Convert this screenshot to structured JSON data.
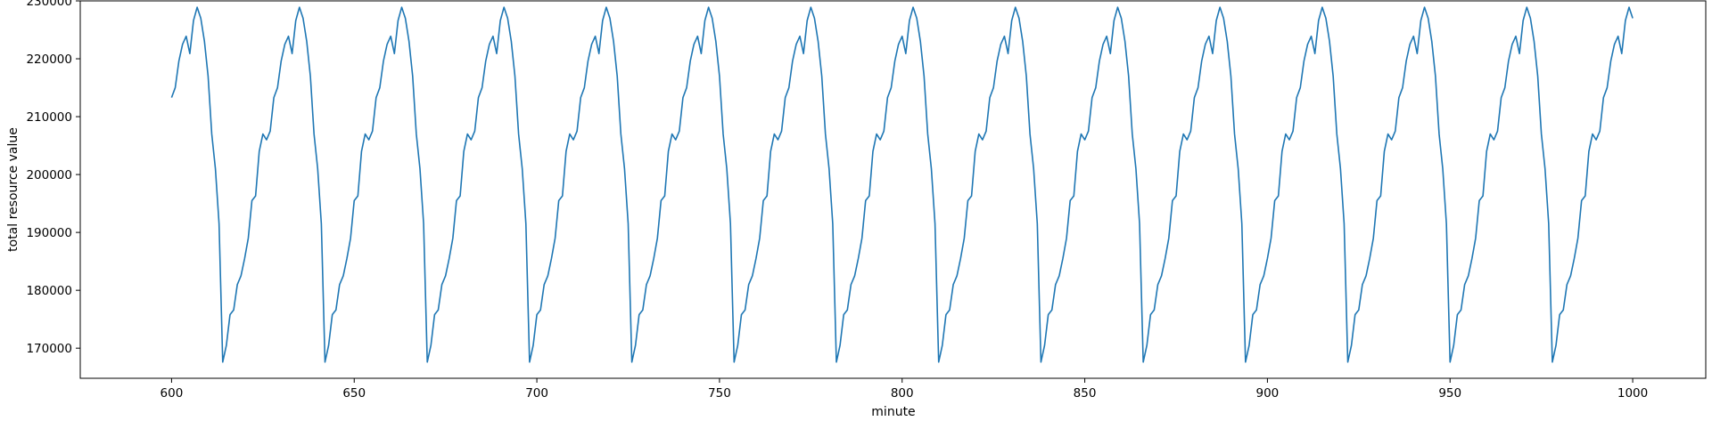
{
  "chart_data": {
    "type": "line",
    "title": "",
    "xlabel": "minute",
    "ylabel": "total resource value",
    "xlim": [
      575,
      1020
    ],
    "ylim": [
      164800,
      230000
    ],
    "x_ticks": [
      600,
      650,
      700,
      750,
      800,
      850,
      900,
      950,
      1000
    ],
    "x_tick_labels": [
      "600",
      "650",
      "700",
      "750",
      "800",
      "850",
      "900",
      "950",
      "1000"
    ],
    "y_ticks": [
      170000,
      180000,
      190000,
      200000,
      210000,
      220000,
      230000
    ],
    "y_tick_labels": [
      "170000",
      "180000",
      "190000",
      "200000",
      "210000",
      "220000",
      "230000"
    ],
    "grid": false,
    "line_color": "#1f77b4",
    "series": [
      {
        "x_start": 600,
        "x_step": 1,
        "x_end": 1000,
        "period": 28,
        "first_cycle_start_x": 586,
        "cycle_values": [
          167600,
          170500,
          175800,
          176600,
          181000,
          182500,
          185500,
          189000,
          195500,
          196300,
          204000,
          207000,
          206000,
          207500,
          213300,
          215000,
          219600,
          222500,
          223900,
          220900,
          226600,
          228900,
          227000,
          223000,
          217000,
          207000,
          201000,
          191500
        ]
      }
    ]
  }
}
